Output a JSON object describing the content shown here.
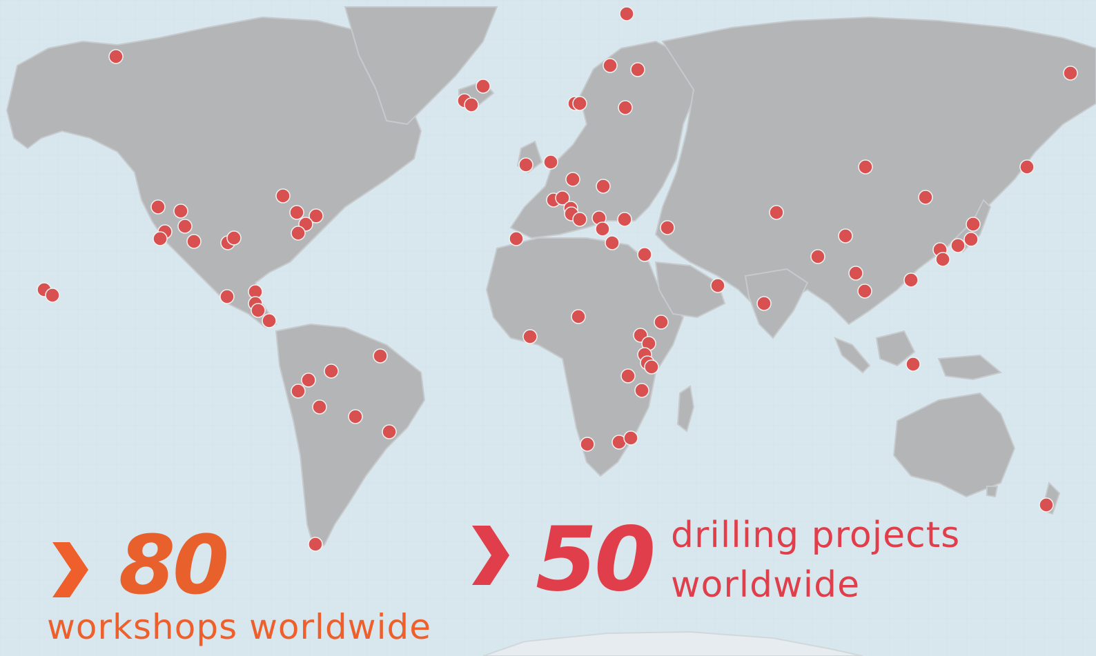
{
  "stats": {
    "workshops": {
      "prefix_symbol": ">",
      "number": "80",
      "label": "workshops worldwide",
      "color": "#ee5f2c"
    },
    "drilling": {
      "prefix_symbol": ">",
      "number": "50",
      "label_line1": "drilling projects",
      "label_line2": "worldwide",
      "color": "#df3e4a"
    }
  },
  "map": {
    "ocean_color": "#d8e7ee",
    "land_color": "#b3b5b7",
    "ice_color": "#dde4e8",
    "marker_color": "#d95050",
    "marker_stroke": "#f2f2f2",
    "marker_icon": "circle-marker-icon"
  }
}
